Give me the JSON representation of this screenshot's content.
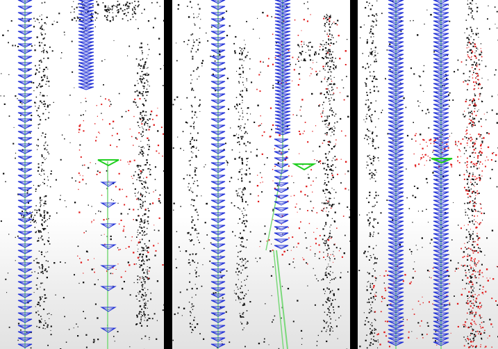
{
  "figure": {
    "panel_count": 3,
    "colors": {
      "background": "#ffffff",
      "separator": "#000000",
      "camera_frustum": "#1f2fd6",
      "trajectory": "#7ad97a",
      "current_camera": "#1fcf1f",
      "map_points": "#111111",
      "local_points": "#e01818"
    },
    "panels": [
      {
        "name": "panel-1",
        "description_icon": "slam-trajectory-view"
      },
      {
        "name": "panel-2",
        "description_icon": "slam-trajectory-view"
      },
      {
        "name": "panel-3",
        "description_icon": "slam-trajectory-view"
      }
    ]
  }
}
